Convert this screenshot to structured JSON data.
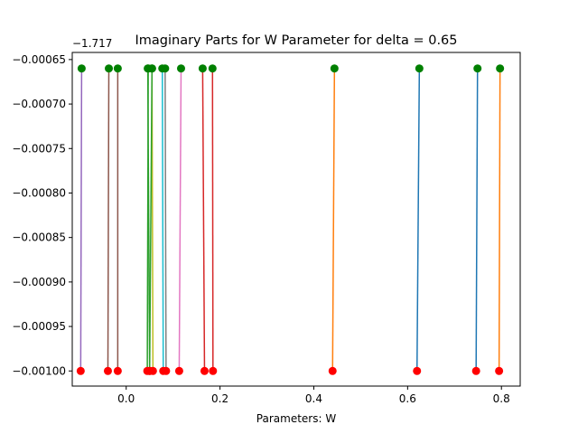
{
  "chart_data": {
    "type": "line",
    "title": "Imaginary Parts for W Parameter for delta = 0.65",
    "xlabel": "Parameters: W",
    "ylabel": "",
    "y_offset_label": "−1.717",
    "xlim": [
      -0.115,
      0.84
    ],
    "ylim": [
      -0.001017,
      -0.000642
    ],
    "x_ticks": [
      {
        "value": 0.0,
        "label": "0.0"
      },
      {
        "value": 0.2,
        "label": "0.2"
      },
      {
        "value": 0.4,
        "label": "0.4"
      },
      {
        "value": 0.6,
        "label": "0.6"
      },
      {
        "value": 0.8,
        "label": "0.8"
      }
    ],
    "y_ticks": [
      {
        "value": -0.00065,
        "label": "−0.00065"
      },
      {
        "value": -0.0007,
        "label": "−0.00070"
      },
      {
        "value": -0.00075,
        "label": "−0.00075"
      },
      {
        "value": -0.0008,
        "label": "−0.00080"
      },
      {
        "value": -0.00085,
        "label": "−0.00085"
      },
      {
        "value": -0.0009,
        "label": "−0.00090"
      },
      {
        "value": -0.00095,
        "label": "−0.00095"
      },
      {
        "value": -0.001,
        "label": "−0.00100"
      }
    ],
    "top_marker_color": "#008000",
    "bottom_marker_color": "#ff0000",
    "series": [
      {
        "color": "#1f77b4",
        "x": [
          0.62,
          0.625
        ],
        "y": [
          -0.001,
          -0.00066
        ]
      },
      {
        "color": "#ff7f0e",
        "x": [
          0.44,
          0.444
        ],
        "y": [
          -0.001,
          -0.00066
        ]
      },
      {
        "color": "#2ca02c",
        "x": [
          0.05,
          0.046
        ],
        "y": [
          -0.001,
          -0.00066
        ]
      },
      {
        "color": "#d62728",
        "x": [
          0.167,
          0.163
        ],
        "y": [
          -0.001,
          -0.00066
        ]
      },
      {
        "color": "#9467bd",
        "x": [
          -0.097,
          -0.095
        ],
        "y": [
          -0.001,
          -0.00066
        ]
      },
      {
        "color": "#8c564b",
        "x": [
          -0.039,
          -0.037
        ],
        "y": [
          -0.001,
          -0.00066
        ]
      },
      {
        "color": "#e377c2",
        "x": [
          0.113,
          0.117
        ],
        "y": [
          -0.001,
          -0.00066
        ]
      },
      {
        "color": "#7f7f7f",
        "x": [
          0.085,
          0.083
        ],
        "y": [
          -0.001,
          -0.00066
        ]
      },
      {
        "color": "#bcbd22",
        "x": [
          0.057,
          0.055
        ],
        "y": [
          -0.001,
          -0.00066
        ]
      },
      {
        "color": "#17becf",
        "x": [
          0.079,
          0.077
        ],
        "y": [
          -0.001,
          -0.00066
        ]
      },
      {
        "color": "#1f77b4",
        "x": [
          0.746,
          0.749
        ],
        "y": [
          -0.001,
          -0.00066
        ]
      },
      {
        "color": "#ff7f0e",
        "x": [
          0.795,
          0.797
        ],
        "y": [
          -0.001,
          -0.00066
        ]
      },
      {
        "color": "#2ca02c",
        "x": [
          0.045,
          0.047
        ],
        "y": [
          -0.001,
          -0.00066
        ]
      },
      {
        "color": "#d62728",
        "x": [
          0.185,
          0.184
        ],
        "y": [
          -0.001,
          -0.00066
        ]
      },
      {
        "color": "#8c564b",
        "x": [
          -0.018,
          -0.018
        ],
        "y": [
          -0.001,
          -0.00066
        ]
      },
      {
        "color": "#2ca02c",
        "x": [
          0.05,
          0.055
        ],
        "y": [
          -0.001,
          -0.00066
        ]
      }
    ]
  }
}
